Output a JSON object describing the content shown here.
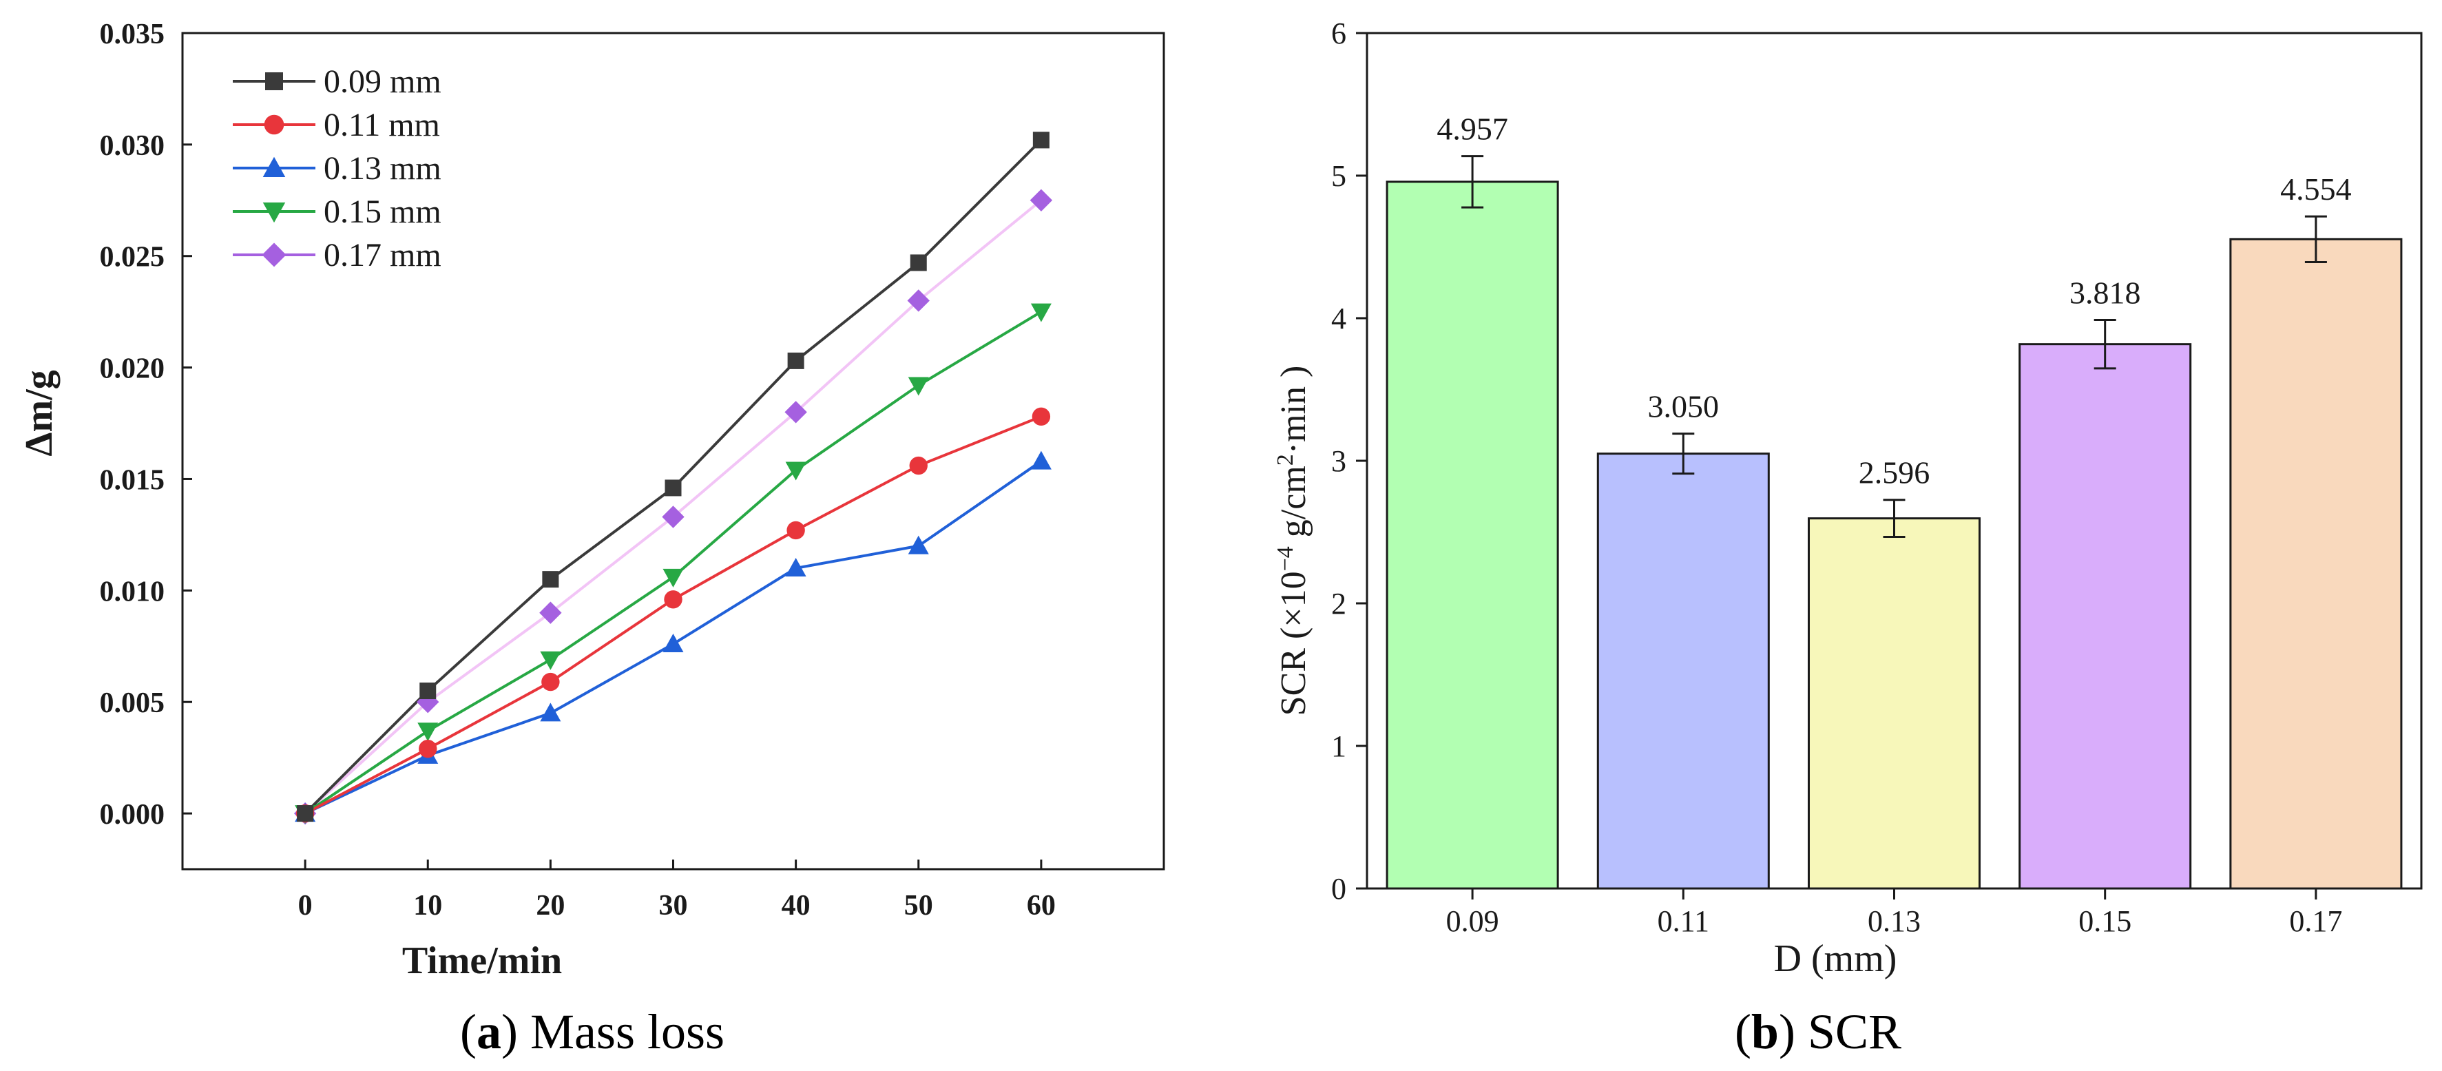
{
  "chart_data": [
    {
      "type": "line",
      "panel": "a",
      "caption_letter": "a",
      "caption_text": " Mass loss",
      "xlabel": "Time/min",
      "ylabel": "Δm/g",
      "x": [
        0,
        10,
        20,
        30,
        40,
        50,
        60
      ],
      "xticks": [
        "0",
        "10",
        "20",
        "30",
        "40",
        "50",
        "60"
      ],
      "xlim": [
        -10,
        70
      ],
      "ylim": [
        -0.0025,
        0.035
      ],
      "yticks": [
        "0.000",
        "0.005",
        "0.010",
        "0.015",
        "0.020",
        "0.025",
        "0.030",
        "0.035"
      ],
      "legend_position": "top-left",
      "series": [
        {
          "name": "0.09 mm",
          "marker": "square",
          "color": "#3a3a3a",
          "values": [
            0,
            0.0055,
            0.0105,
            0.0146,
            0.0203,
            0.0247,
            0.0302
          ]
        },
        {
          "name": "0.11 mm",
          "marker": "circle",
          "color": "#e8353b",
          "values": [
            0,
            0.0029,
            0.0059,
            0.0096,
            0.0127,
            0.0156,
            0.0178
          ]
        },
        {
          "name": "0.13 mm",
          "marker": "triangle-up",
          "color": "#2060d8",
          "values": [
            0,
            0.0026,
            0.0045,
            0.0076,
            0.011,
            0.012,
            0.0158
          ]
        },
        {
          "name": "0.15 mm",
          "marker": "triangle-down",
          "color": "#27a844",
          "values": [
            0,
            0.0037,
            0.0069,
            0.0106,
            0.0154,
            0.0192,
            0.0225
          ]
        },
        {
          "name": "0.17 mm",
          "marker": "diamond",
          "color": "#a560e0",
          "line_color": "#f2c4f6",
          "values": [
            0,
            0.005,
            0.009,
            0.0133,
            0.018,
            0.023,
            0.0275
          ]
        }
      ]
    },
    {
      "type": "bar",
      "panel": "b",
      "caption_letter": "b",
      "caption_text": " SCR",
      "xlabel": "D (mm)",
      "ylabel_parts": [
        "SCR (×10",
        "−4",
        " g/cm",
        "2",
        "·min )"
      ],
      "categories": [
        "0.09",
        "0.11",
        "0.13",
        "0.15",
        "0.17"
      ],
      "values": [
        4.957,
        3.05,
        2.596,
        3.818,
        4.554
      ],
      "value_labels": [
        "4.957",
        "3.050",
        "2.596",
        "3.818",
        "4.554"
      ],
      "errors": [
        0.18,
        0.14,
        0.13,
        0.17,
        0.16
      ],
      "colors": [
        "#b2ffb2",
        "#b8c0fe",
        "#f7f7ba",
        "#d9adfb",
        "#f9d9bd"
      ],
      "ylim": [
        0,
        6
      ],
      "yticks": [
        "0",
        "1",
        "2",
        "3",
        "4",
        "5",
        "6"
      ]
    }
  ]
}
